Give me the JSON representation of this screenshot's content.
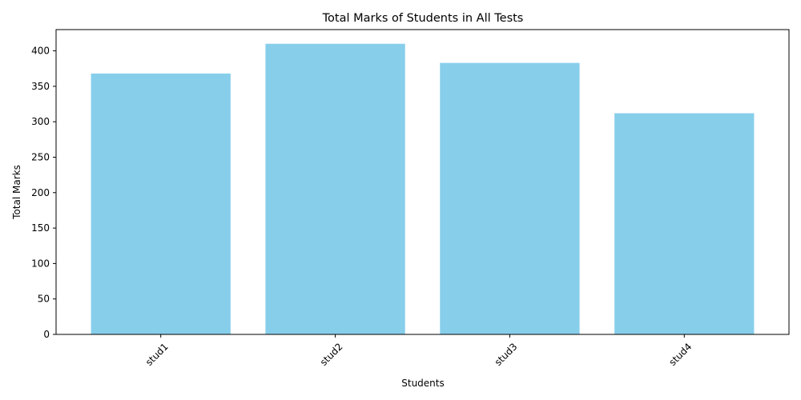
{
  "chart_data": {
    "type": "bar",
    "title": "Total Marks of Students in All Tests",
    "xlabel": "Students",
    "ylabel": "Total Marks",
    "categories": [
      "stud1",
      "stud2",
      "stud3",
      "stud4"
    ],
    "values": [
      368,
      410,
      383,
      312
    ],
    "ylim": [
      0,
      430
    ],
    "yticks": [
      0,
      50,
      100,
      150,
      200,
      250,
      300,
      350,
      400
    ],
    "bar_color": "#87ceeb",
    "grid": false,
    "x_tick_rotation": 45
  }
}
